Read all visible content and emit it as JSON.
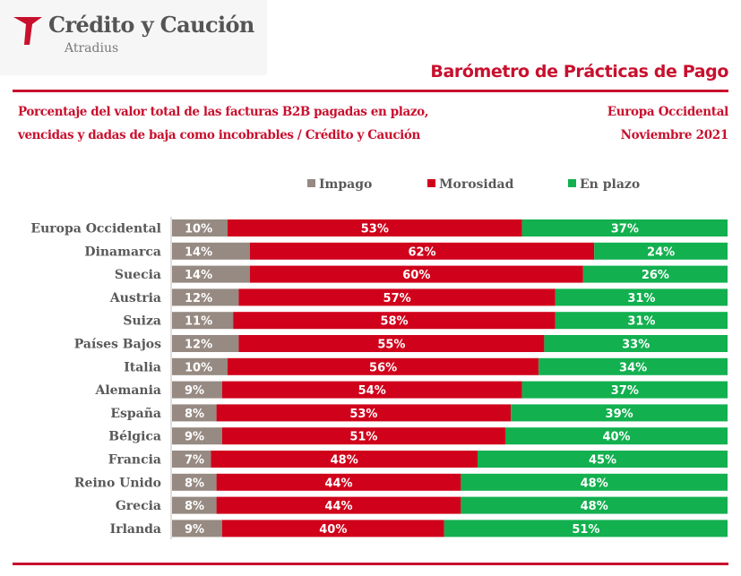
{
  "brand": {
    "name": "Crédito y Caución",
    "sub": "Atradius",
    "color": "#c8102e"
  },
  "header": {
    "title": "Barómetro de Prácticas de Pago"
  },
  "subtitle": {
    "line1": "Porcentaje del valor total de las facturas B2B pagadas en plazo,",
    "line2": "vencidas y dadas de baja como incobrables  / Crédito y Caución"
  },
  "region": {
    "line1": "Europa Occidental",
    "line2": "Noviembre  2021"
  },
  "colors": {
    "impago": "#968a82",
    "morosidad": "#d0021b",
    "en_plazo": "#12b04f",
    "accent": "#c8102e"
  },
  "chart_data": {
    "type": "bar",
    "orientation": "horizontal",
    "stacked": true,
    "categories": [
      "Europa Occidental",
      "Dinamarca",
      "Suecia",
      "Austria",
      "Suiza",
      "Países Bajos",
      "Italia",
      "Alemania",
      "España",
      "Bélgica",
      "Francia",
      "Reino Unido",
      "Grecia",
      "Irlanda"
    ],
    "series": [
      {
        "name": "Impago",
        "color": "#968a82",
        "values": [
          10,
          14,
          14,
          12,
          11,
          12,
          10,
          9,
          8,
          9,
          7,
          8,
          8,
          9
        ]
      },
      {
        "name": "Morosidad",
        "color": "#d0021b",
        "values": [
          53,
          62,
          60,
          57,
          58,
          55,
          56,
          54,
          53,
          51,
          48,
          44,
          44,
          40
        ]
      },
      {
        "name": "En plazo",
        "color": "#12b04f",
        "values": [
          37,
          24,
          26,
          31,
          31,
          33,
          34,
          37,
          39,
          40,
          45,
          48,
          48,
          51
        ]
      }
    ],
    "value_suffix": "%",
    "xlim": [
      0,
      100
    ],
    "legend_position": "top",
    "grid": false
  }
}
